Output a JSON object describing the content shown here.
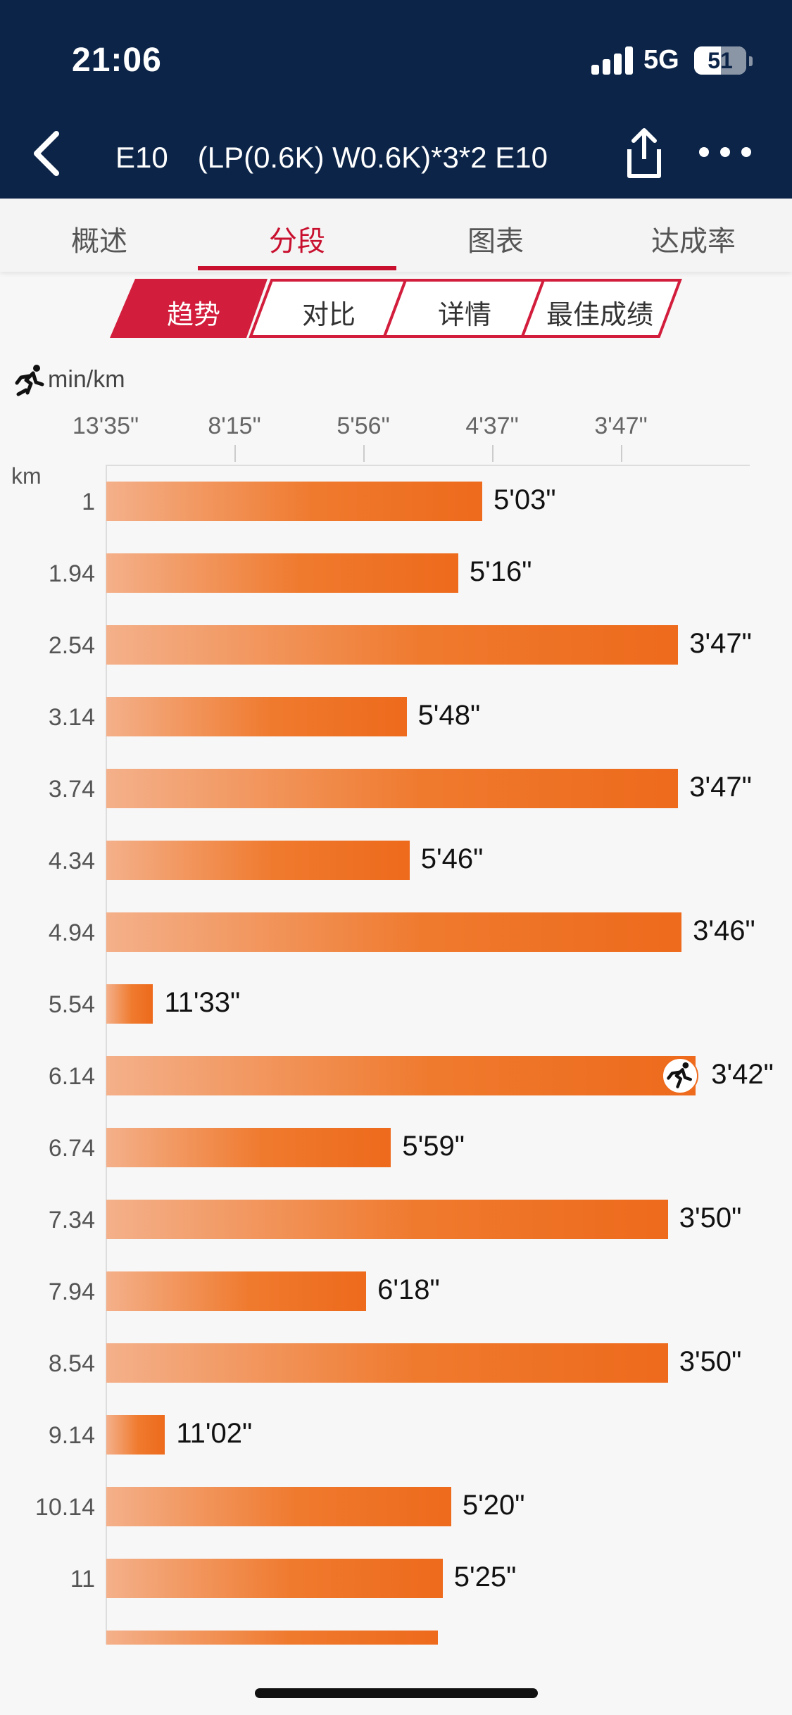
{
  "status_bar": {
    "time": "21:06",
    "network": "5G",
    "battery": "51",
    "battery_level": 0.51
  },
  "nav": {
    "title": "E10　(LP(0.6K) W0.6K)*3*2 E10",
    "back_icon": "chevron-left-icon",
    "share_icon": "share-icon",
    "more_icon": "more-icon"
  },
  "tabs": [
    {
      "label": "概述",
      "active": false
    },
    {
      "label": "分段",
      "active": true
    },
    {
      "label": "图表",
      "active": false
    },
    {
      "label": "达成率",
      "active": false
    }
  ],
  "segments": [
    {
      "label": "趋势",
      "active": true
    },
    {
      "label": "对比",
      "active": false
    },
    {
      "label": "详情",
      "active": false
    },
    {
      "label": "最佳成绩",
      "active": false
    }
  ],
  "colors": {
    "header": "#0c2448",
    "accent": "#c8102e",
    "bar_start": "#f4b08a",
    "bar_end": "#ee6a1c"
  },
  "chart_data": {
    "type": "bar",
    "orientation": "horizontal",
    "unit": "min/km",
    "y_unit": "km",
    "x_ticks": [
      "13'35\"",
      "8'15\"",
      "5'56\"",
      "4'37\"",
      "3'47\""
    ],
    "categories": [
      "1",
      "1.94",
      "2.54",
      "3.14",
      "3.74",
      "4.34",
      "4.94",
      "5.54",
      "6.14",
      "6.74",
      "7.34",
      "7.94",
      "8.54",
      "9.14",
      "10.14",
      "11"
    ],
    "values": [
      "5'03\"",
      "5'16\"",
      "3'47\"",
      "5'48\"",
      "3'47\"",
      "5'46\"",
      "3'46\"",
      "11'33\"",
      "3'42\"",
      "5'59\"",
      "3'50\"",
      "6'18\"",
      "3'50\"",
      "11'02\"",
      "5'20\"",
      "5'25\""
    ],
    "values_seconds": [
      303,
      316,
      227,
      348,
      227,
      346,
      226,
      693,
      222,
      359,
      230,
      378,
      230,
      662,
      320,
      325
    ],
    "best_index": 8,
    "best_icon": "runner-icon",
    "trailing_partial_value_seconds": 328
  }
}
